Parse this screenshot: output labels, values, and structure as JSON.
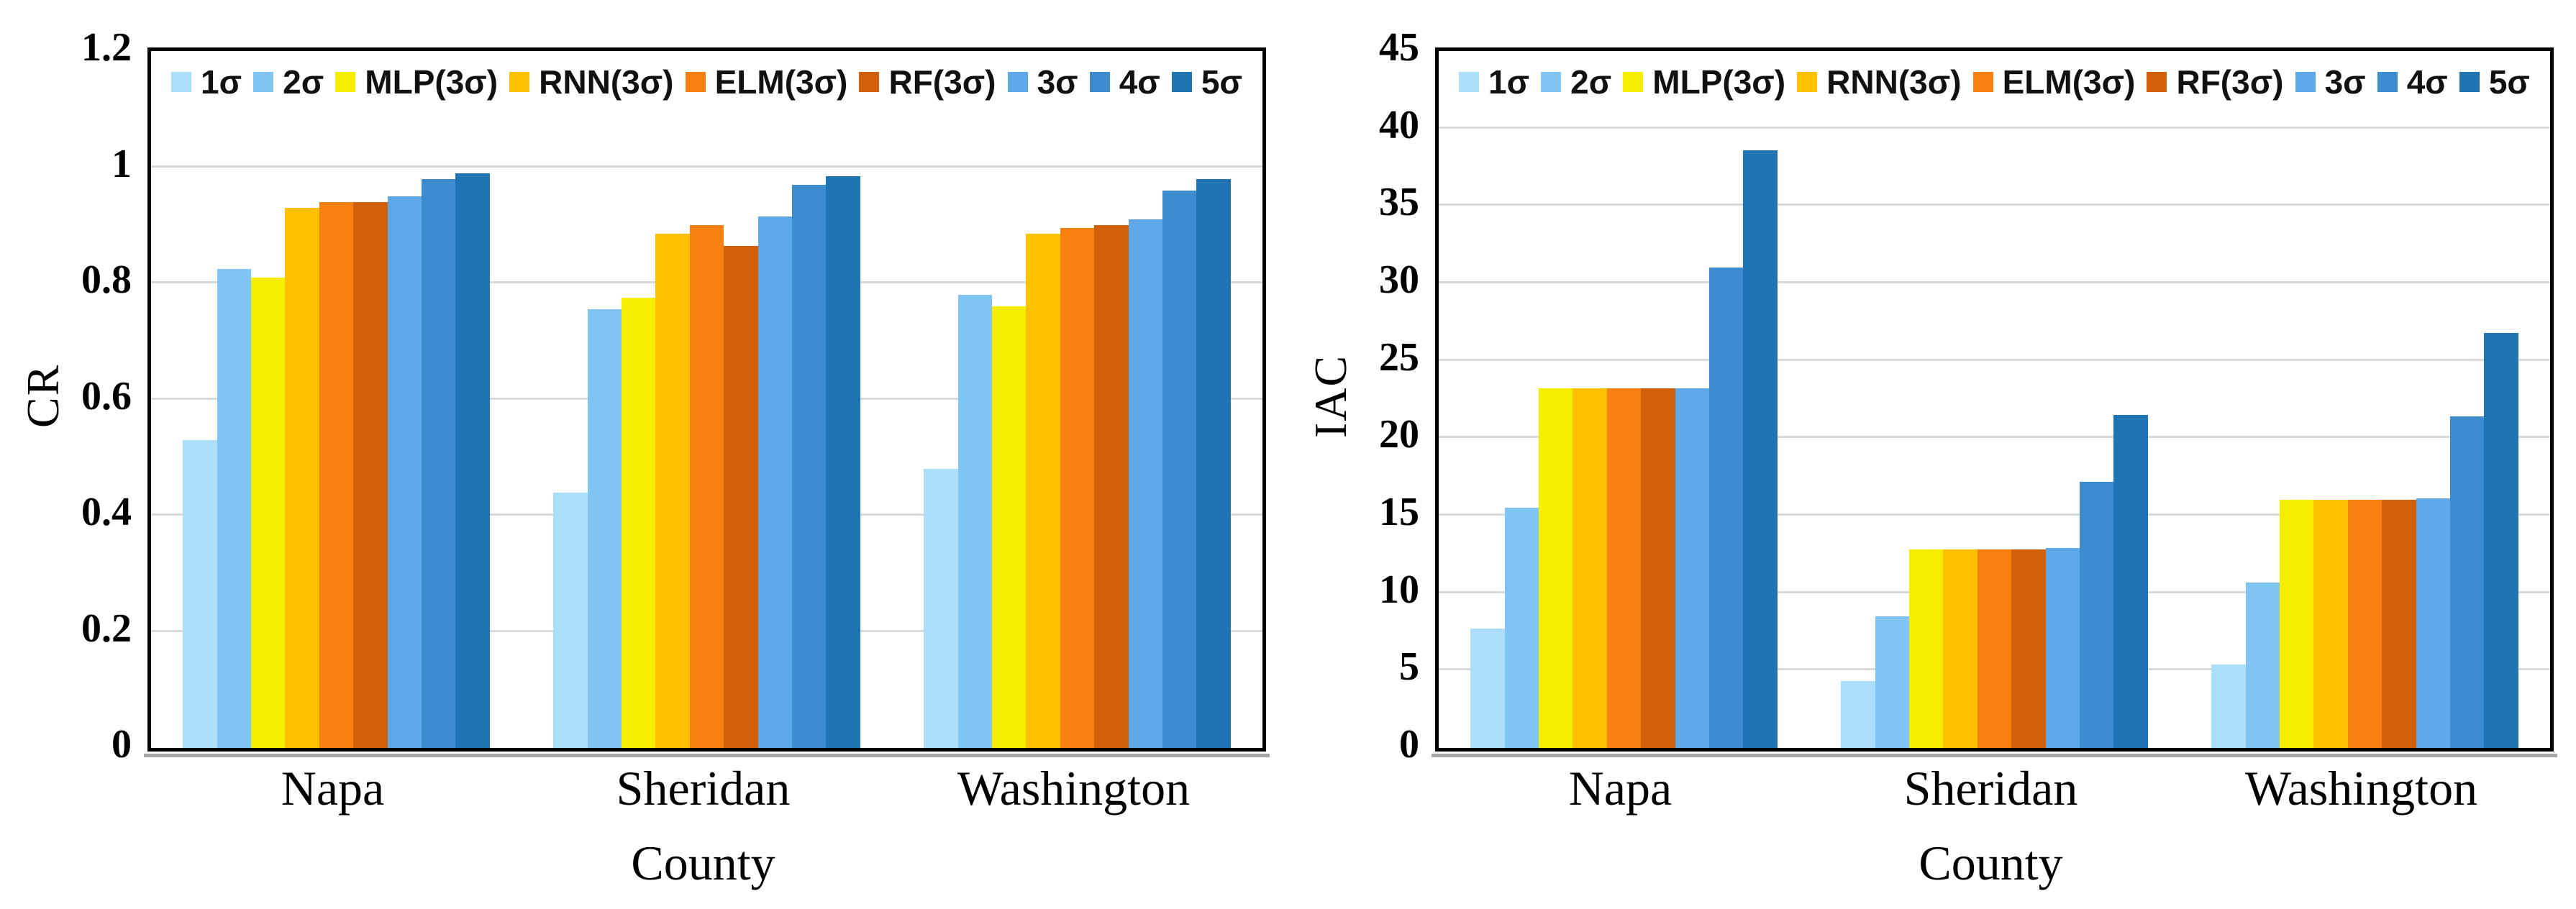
{
  "figure": {
    "background": "#FFFFFF",
    "plot_border_color": "#000000",
    "grid_color": "#D9D9D9",
    "axis_shadow_color": "#A6A6A6",
    "text_color": "#000000"
  },
  "chart_data": [
    {
      "type": "bar",
      "title": "",
      "xlabel": "County",
      "ylabel": "CR",
      "categories": [
        "Napa",
        "Sheridan",
        "Washington"
      ],
      "ylim": [
        0,
        1.2
      ],
      "ytick_labels": [
        "0",
        "0.2",
        "0.4",
        "0.6",
        "0.8",
        "1",
        "1.2"
      ],
      "grid": true,
      "legend_position": "top-inside",
      "series": [
        {
          "name": "1σ",
          "color": "#ABDEF8",
          "values": [
            0.53,
            0.44,
            0.48
          ]
        },
        {
          "name": "2σ",
          "color": "#7FC4F2",
          "values": [
            0.825,
            0.755,
            0.78
          ]
        },
        {
          "name": "MLP(3σ)",
          "color": "#F6EE00",
          "values": [
            0.81,
            0.775,
            0.76
          ]
        },
        {
          "name": "RNN(3σ)",
          "color": "#FFC000",
          "values": [
            0.93,
            0.885,
            0.885
          ]
        },
        {
          "name": "ELM(3σ)",
          "color": "#F88010",
          "values": [
            0.94,
            0.9,
            0.895
          ]
        },
        {
          "name": "RF(3σ)",
          "color": "#D2600A",
          "values": [
            0.94,
            0.865,
            0.9
          ]
        },
        {
          "name": "3σ",
          "color": "#5FA8E8",
          "values": [
            0.95,
            0.915,
            0.91
          ]
        },
        {
          "name": "4σ",
          "color": "#3E8CD0",
          "values": [
            0.98,
            0.97,
            0.96
          ]
        },
        {
          "name": "5σ",
          "color": "#1F74B4",
          "values": [
            0.99,
            0.985,
            0.98
          ]
        }
      ]
    },
    {
      "type": "bar",
      "title": "",
      "xlabel": "County",
      "ylabel": "IAC",
      "categories": [
        "Napa",
        "Sheridan",
        "Washington"
      ],
      "ylim": [
        0,
        45
      ],
      "ytick_labels": [
        "0",
        "5",
        "10",
        "15",
        "20",
        "25",
        "30",
        "35",
        "40",
        "45"
      ],
      "grid": true,
      "legend_position": "top-inside",
      "series": [
        {
          "name": "1σ",
          "color": "#ABDEF8",
          "values": [
            7.7,
            4.3,
            5.4
          ]
        },
        {
          "name": "2σ",
          "color": "#7FC4F2",
          "values": [
            15.5,
            8.5,
            10.7
          ]
        },
        {
          "name": "MLP(3σ)",
          "color": "#F6EE00",
          "values": [
            23.2,
            12.8,
            16.0
          ]
        },
        {
          "name": "RNN(3σ)",
          "color": "#FFC000",
          "values": [
            23.2,
            12.8,
            16.0
          ]
        },
        {
          "name": "ELM(3σ)",
          "color": "#F88010",
          "values": [
            23.2,
            12.8,
            16.0
          ]
        },
        {
          "name": "RF(3σ)",
          "color": "#D2600A",
          "values": [
            23.2,
            12.8,
            16.0
          ]
        },
        {
          "name": "3σ",
          "color": "#5FA8E8",
          "values": [
            23.2,
            12.9,
            16.1
          ]
        },
        {
          "name": "4σ",
          "color": "#3E8CD0",
          "values": [
            31.0,
            17.2,
            21.4
          ]
        },
        {
          "name": "5σ",
          "color": "#1F74B4",
          "values": [
            38.6,
            21.5,
            26.8
          ]
        }
      ]
    }
  ]
}
